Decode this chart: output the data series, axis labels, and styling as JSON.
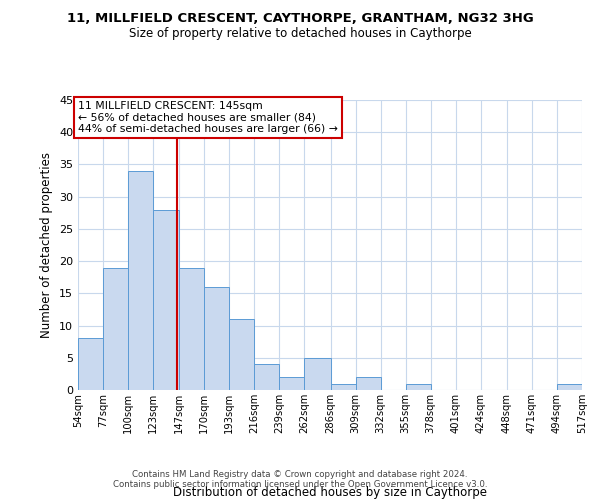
{
  "title": "11, MILLFIELD CRESCENT, CAYTHORPE, GRANTHAM, NG32 3HG",
  "subtitle": "Size of property relative to detached houses in Caythorpe",
  "xlabel": "Distribution of detached houses by size in Caythorpe",
  "ylabel": "Number of detached properties",
  "bin_edges": [
    54,
    77,
    100,
    123,
    147,
    170,
    193,
    216,
    239,
    262,
    286,
    309,
    332,
    355,
    378,
    401,
    424,
    448,
    471,
    494,
    517
  ],
  "bin_counts": [
    8,
    19,
    34,
    28,
    19,
    16,
    11,
    4,
    2,
    5,
    1,
    2,
    0,
    1,
    0,
    0,
    0,
    0,
    0,
    1
  ],
  "bar_color": "#c9d9ef",
  "bar_edge_color": "#5b9bd5",
  "marker_value": 145,
  "marker_color": "#cc0000",
  "annotation_title": "11 MILLFIELD CRESCENT: 145sqm",
  "annotation_line1": "← 56% of detached houses are smaller (84)",
  "annotation_line2": "44% of semi-detached houses are larger (66) →",
  "annotation_box_edge": "#cc0000",
  "ylim": [
    0,
    45
  ],
  "yticks": [
    0,
    5,
    10,
    15,
    20,
    25,
    30,
    35,
    40,
    45
  ],
  "tick_labels": [
    "54sqm",
    "77sqm",
    "100sqm",
    "123sqm",
    "147sqm",
    "170sqm",
    "193sqm",
    "216sqm",
    "239sqm",
    "262sqm",
    "286sqm",
    "309sqm",
    "332sqm",
    "355sqm",
    "378sqm",
    "401sqm",
    "424sqm",
    "448sqm",
    "471sqm",
    "494sqm",
    "517sqm"
  ],
  "footer_line1": "Contains HM Land Registry data © Crown copyright and database right 2024.",
  "footer_line2": "Contains public sector information licensed under the Open Government Licence v3.0.",
  "background_color": "#ffffff",
  "grid_color": "#c8d8ec"
}
